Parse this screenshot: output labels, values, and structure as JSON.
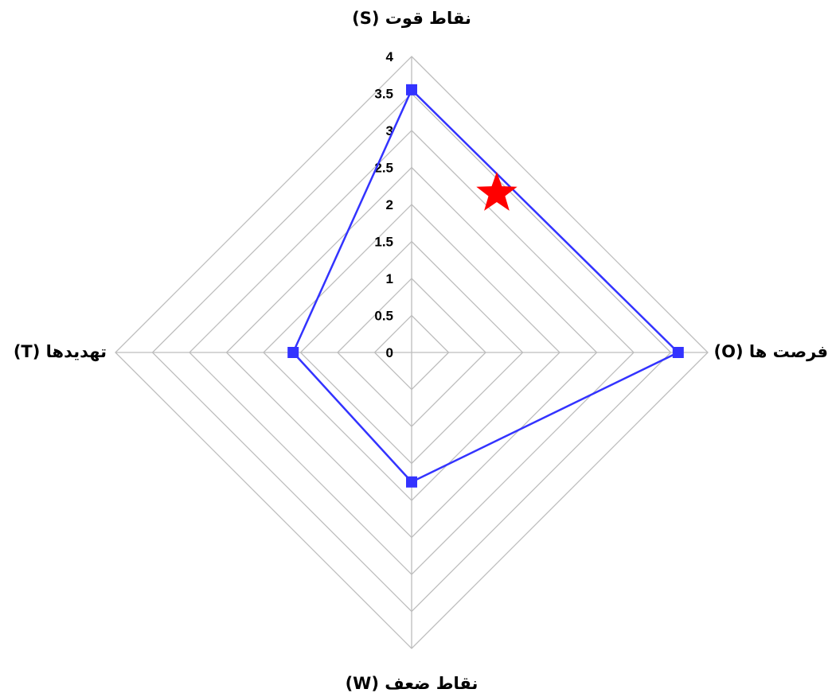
{
  "chart_data": {
    "type": "radar",
    "axes": [
      {
        "key": "S",
        "label": "نقاط قوت (S)"
      },
      {
        "key": "O",
        "label": "فرصت ها (O)"
      },
      {
        "key": "W",
        "label": "نقاط ضعف (W)"
      },
      {
        "key": "T",
        "label": "تهدیدها (T)"
      }
    ],
    "range": [
      0,
      4
    ],
    "ticks": [
      "0",
      "0.5",
      "1",
      "1.5",
      "2",
      "2.5",
      "3",
      "3.5",
      "4"
    ],
    "grid": true,
    "series": [
      {
        "values": [
          3.55,
          3.6,
          1.75,
          1.6
        ],
        "color": "#3333ff",
        "marker": "square"
      }
    ],
    "highlight": {
      "marker": "star",
      "color": "#ff0000",
      "values_sw": {
        "S": 2.15,
        "O": 1.15,
        "W": 0,
        "T": 0
      }
    }
  }
}
